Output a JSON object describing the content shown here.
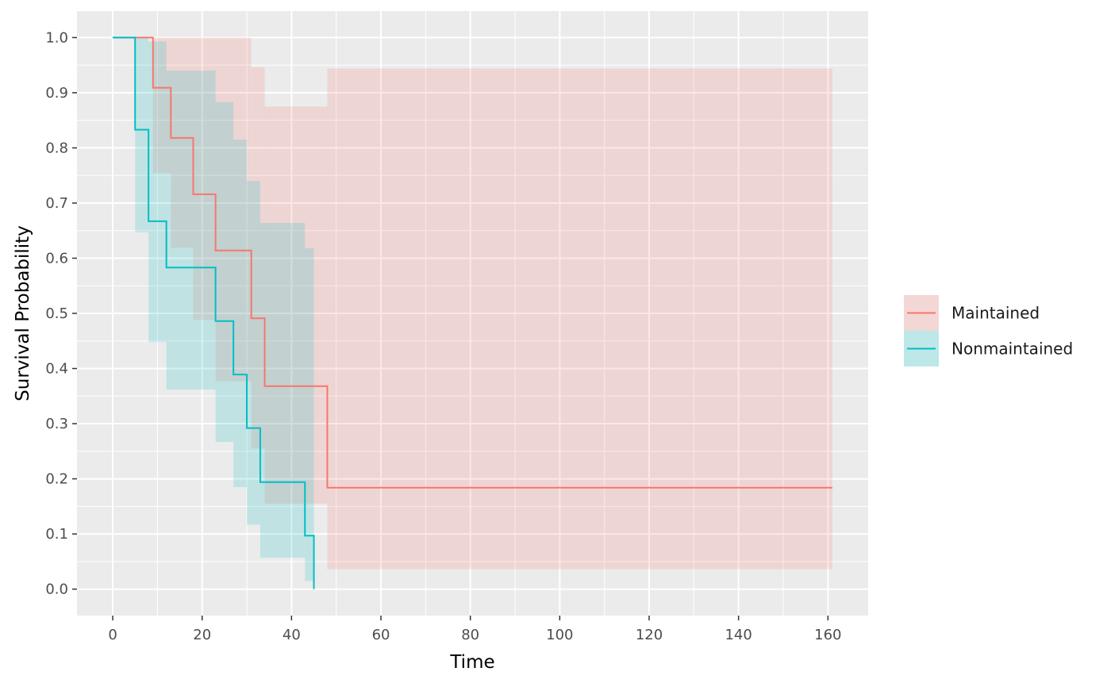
{
  "chart_data": {
    "type": "line",
    "subtype": "kaplan-meier step curve with confidence bands",
    "xlabel": "Time",
    "ylabel": "Survival Probability",
    "xlim": [
      -8,
      169
    ],
    "ylim": [
      -0.048,
      1.048
    ],
    "x_ticks": [
      0,
      20,
      40,
      60,
      80,
      100,
      120,
      140,
      160
    ],
    "x_tick_labels": [
      "0",
      "20",
      "40",
      "60",
      "80",
      "100",
      "120",
      "140",
      "160"
    ],
    "y_ticks": [
      0.0,
      0.1,
      0.2,
      0.3,
      0.4,
      0.5,
      0.6,
      0.7,
      0.8,
      0.9,
      1.0
    ],
    "y_tick_labels": [
      "0.0",
      "0.1",
      "0.2",
      "0.3",
      "0.4",
      "0.5",
      "0.6",
      "0.7",
      "0.8",
      "0.9",
      "1.0"
    ],
    "grid": true,
    "panel_background": "#ebebeb",
    "grid_color": "#ffffff",
    "legend_position": "right",
    "series": [
      {
        "name": "Maintained",
        "color": "#f8766d",
        "band_color": "#f8766d",
        "band_opacity": 0.18,
        "steps": [
          {
            "x": 0,
            "y": 1.0,
            "lower": 1.0,
            "upper": 1.0
          },
          {
            "x": 9,
            "y": 0.909,
            "lower": 0.754,
            "upper": 1.0
          },
          {
            "x": 13,
            "y": 0.818,
            "lower": 0.619,
            "upper": 1.0
          },
          {
            "x": 18,
            "y": 0.716,
            "lower": 0.488,
            "upper": 1.0
          },
          {
            "x": 23,
            "y": 0.614,
            "lower": 0.377,
            "upper": 1.0
          },
          {
            "x": 31,
            "y": 0.491,
            "lower": 0.255,
            "upper": 0.946
          },
          {
            "x": 34,
            "y": 0.368,
            "lower": 0.155,
            "upper": 0.875
          },
          {
            "x": 48,
            "y": 0.184,
            "lower": 0.036,
            "upper": 0.944
          }
        ],
        "end_x": 161
      },
      {
        "name": "Nonmaintained",
        "color": "#00bfc4",
        "band_color": "#00bfc4",
        "band_opacity": 0.18,
        "steps": [
          {
            "x": 0,
            "y": 1.0,
            "lower": 1.0,
            "upper": 1.0
          },
          {
            "x": 5,
            "y": 0.833,
            "lower": 0.647,
            "upper": 1.0
          },
          {
            "x": 8,
            "y": 0.667,
            "lower": 0.448,
            "upper": 0.993
          },
          {
            "x": 12,
            "y": 0.583,
            "lower": 0.362,
            "upper": 0.94
          },
          {
            "x": 23,
            "y": 0.486,
            "lower": 0.267,
            "upper": 0.883
          },
          {
            "x": 27,
            "y": 0.389,
            "lower": 0.185,
            "upper": 0.815
          },
          {
            "x": 30,
            "y": 0.292,
            "lower": 0.117,
            "upper": 0.74
          },
          {
            "x": 33,
            "y": 0.194,
            "lower": 0.057,
            "upper": 0.664
          },
          {
            "x": 43,
            "y": 0.097,
            "lower": 0.015,
            "upper": 0.618
          },
          {
            "x": 45,
            "y": 0.0,
            "lower": 0.0,
            "upper": 0.0
          }
        ],
        "end_x": 45
      }
    ]
  }
}
